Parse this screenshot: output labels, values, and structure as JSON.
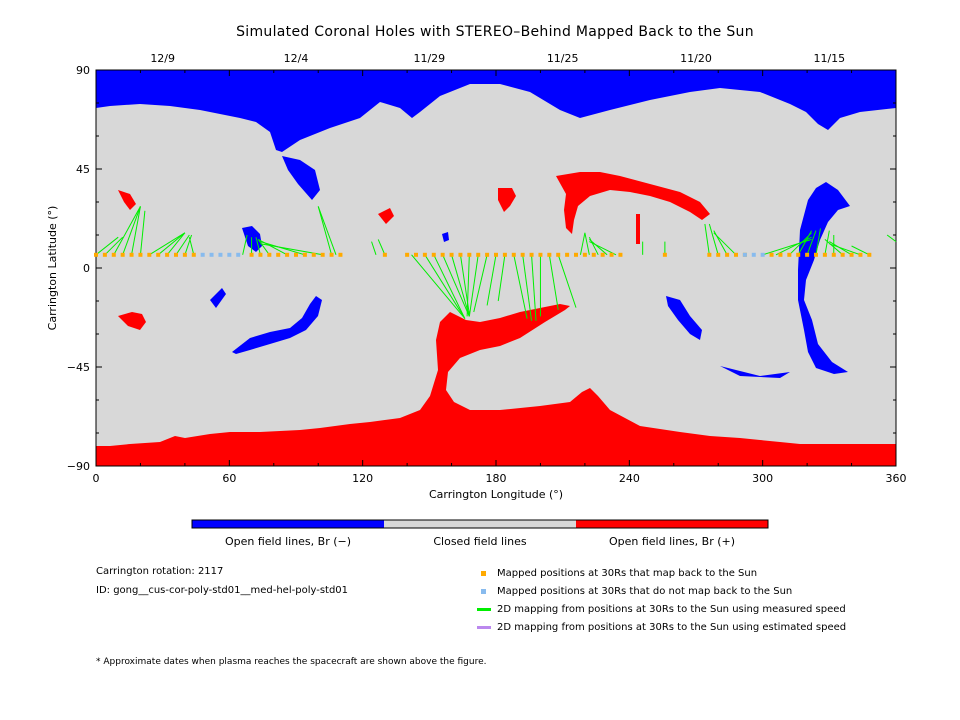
{
  "chart_data": {
    "type": "heatmap",
    "title": "Simulated Coronal Holes with STEREO–Behind Mapped Back to the Sun",
    "xlabel": "Carrington Longitude (°)",
    "ylabel": "Carrington Latitude (°)",
    "xlim": [
      0,
      360
    ],
    "ylim": [
      -90,
      90
    ],
    "x_ticks": [
      0,
      60,
      120,
      180,
      240,
      300,
      360
    ],
    "x_tick_labels": [
      "0",
      "60",
      "120",
      "180",
      "240",
      "300",
      "360"
    ],
    "y_ticks": [
      90,
      45,
      0,
      -45,
      -90
    ],
    "y_tick_labels": [
      "90",
      "45",
      "0",
      "−45",
      "−90"
    ],
    "top_axis_dates": [
      {
        "lon": 30,
        "label": "12/9"
      },
      {
        "lon": 90,
        "label": "12/4"
      },
      {
        "lon": 150,
        "label": "11/29"
      },
      {
        "lon": 210,
        "label": "11/25"
      },
      {
        "lon": 270,
        "label": "11/20"
      },
      {
        "lon": 330,
        "label": "11/15"
      }
    ],
    "colorbar": [
      {
        "label": "Open field lines, Br (−)",
        "color": "#0000ff"
      },
      {
        "label": "Closed field lines",
        "color": "#d8d8d8"
      },
      {
        "label": "Open field lines, Br (+)",
        "color": "#ff0000"
      }
    ],
    "mapped_positions_latitude": 6,
    "mapped_positions_lon": [
      0,
      4,
      8,
      12,
      16,
      20,
      24,
      28,
      32,
      36,
      40,
      44,
      70,
      74,
      78,
      82,
      86,
      90,
      94,
      98,
      102,
      106,
      110,
      130,
      140,
      144,
      148,
      152,
      156,
      160,
      164,
      168,
      172,
      176,
      180,
      184,
      188,
      192,
      196,
      200,
      204,
      208,
      212,
      216,
      220,
      224,
      228,
      232,
      236,
      256,
      276,
      280,
      284,
      288,
      292,
      304,
      308,
      312,
      316,
      320,
      324,
      328,
      332,
      336,
      340,
      344,
      348
    ],
    "unmapped_positions_lon": [
      48,
      52,
      56,
      60,
      64,
      292,
      296,
      300
    ],
    "mapping_lines_measured": [
      [
        0,
        6,
        10,
        14
      ],
      [
        4,
        6,
        12,
        14
      ],
      [
        8,
        6,
        20,
        28
      ],
      [
        12,
        6,
        20,
        28
      ],
      [
        16,
        6,
        20,
        28
      ],
      [
        20,
        6,
        22,
        26
      ],
      [
        24,
        6,
        40,
        16
      ],
      [
        28,
        6,
        40,
        16
      ],
      [
        32,
        6,
        40,
        16
      ],
      [
        36,
        6,
        42,
        15
      ],
      [
        40,
        6,
        43,
        15
      ],
      [
        44,
        6,
        42,
        14
      ],
      [
        66,
        6,
        68,
        15
      ],
      [
        70,
        6,
        70,
        14
      ],
      [
        74,
        6,
        72,
        14
      ],
      [
        78,
        6,
        73,
        13
      ],
      [
        86,
        6,
        73,
        13
      ],
      [
        94,
        6,
        74,
        12
      ],
      [
        102,
        6,
        74,
        11
      ],
      [
        106,
        6,
        100,
        28
      ],
      [
        108,
        6,
        100,
        28
      ],
      [
        126,
        6,
        124,
        12
      ],
      [
        130,
        6,
        127,
        13
      ],
      [
        142,
        6,
        166,
        -23
      ],
      [
        148,
        6,
        166,
        -23
      ],
      [
        152,
        6,
        166,
        -23
      ],
      [
        156,
        6,
        168,
        -22
      ],
      [
        160,
        6,
        168,
        -22
      ],
      [
        164,
        6,
        168,
        -21
      ],
      [
        168,
        6,
        167,
        -22
      ],
      [
        172,
        6,
        168,
        -22
      ],
      [
        176,
        6,
        170,
        -20
      ],
      [
        180,
        6,
        176,
        -17
      ],
      [
        184,
        6,
        181,
        -15
      ],
      [
        188,
        6,
        194,
        -23
      ],
      [
        192,
        6,
        196,
        -24
      ],
      [
        196,
        6,
        198,
        -24
      ],
      [
        200,
        6,
        200,
        -22
      ],
      [
        204,
        6,
        208,
        -19
      ],
      [
        208,
        6,
        216,
        -18
      ],
      [
        218,
        6,
        220,
        16
      ],
      [
        222,
        6,
        220,
        16
      ],
      [
        226,
        6,
        222,
        14
      ],
      [
        230,
        6,
        222,
        13
      ],
      [
        234,
        6,
        222,
        12
      ],
      [
        246,
        6,
        246,
        12
      ],
      [
        256,
        6,
        256,
        12
      ],
      [
        276,
        6,
        274,
        20
      ],
      [
        280,
        6,
        276,
        20
      ],
      [
        284,
        6,
        278,
        17
      ],
      [
        288,
        6,
        278,
        16
      ],
      [
        300,
        6,
        322,
        13
      ],
      [
        306,
        6,
        322,
        14
      ],
      [
        312,
        6,
        322,
        16
      ],
      [
        316,
        6,
        322,
        17
      ],
      [
        320,
        6,
        324,
        17
      ],
      [
        324,
        6,
        326,
        18
      ],
      [
        328,
        6,
        330,
        17
      ],
      [
        332,
        6,
        332,
        15
      ],
      [
        336,
        6,
        328,
        13
      ],
      [
        340,
        6,
        330,
        12
      ],
      [
        344,
        6,
        330,
        11
      ],
      [
        348,
        6,
        340,
        10
      ],
      [
        360,
        12,
        356,
        15
      ]
    ],
    "mapping_lines_estimated": [],
    "regions_negative_polarity_blue": "north polar cap plus small mid-latitude patches",
    "regions_positive_polarity_red": "south polar cap plus extension toward equator near 170-230 longitude"
  },
  "info": {
    "rotation": "Carrington rotation: 2117",
    "id": "ID: gong__cus-cor-poly-std01__med-hel-poly-std01"
  },
  "legend": [
    {
      "label": "Mapped positions at 30Rs that map back to the Sun",
      "color": "#ffaa00",
      "kind": "square"
    },
    {
      "label": "Mapped positions at 30Rs that do not map back to the Sun",
      "color": "#88bbee",
      "kind": "square"
    },
    {
      "label": "2D mapping from positions at 30Rs to the Sun using measured speed",
      "color": "#00ee00",
      "kind": "line"
    },
    {
      "label": "2D mapping from positions at 30Rs to the Sun using estimated speed",
      "color": "#bb88ee",
      "kind": "line"
    }
  ],
  "footnote": "* Approximate dates when plasma reaches the spacecraft are shown above the figure."
}
